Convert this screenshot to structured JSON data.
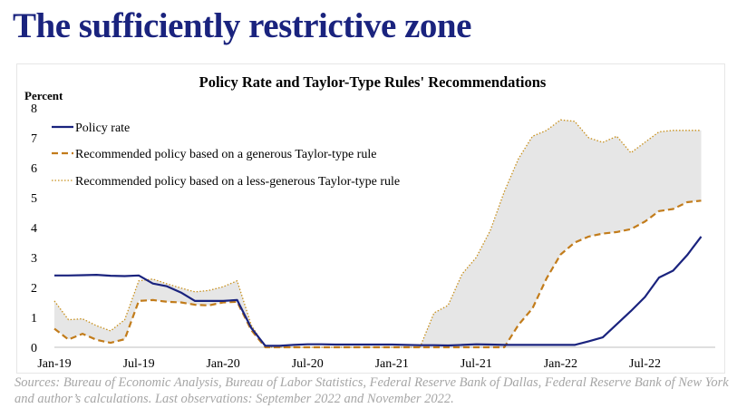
{
  "slide": {
    "title": "The sufficiently restrictive zone",
    "source": "Sources: Bureau of Economic Analysis, Bureau of Labor Statistics, Federal Reserve Bank of Dallas, Federal Reserve Bank of New York and author’s calculations. Last observations: September 2022 and November 2022."
  },
  "colors": {
    "title": "#1a237e",
    "policy_rate": "#1a237e",
    "generous_rule": "#c27c1b",
    "less_generous_rule": "#c8901c",
    "band_fill": "#e6e6e6",
    "source_text": "#a6a6a6"
  },
  "chart_data": {
    "type": "line",
    "title": "Policy Rate and Taylor-Type Rules' Recommendations",
    "ylabel": "Percent",
    "xlabel": "",
    "ylim": [
      0,
      8
    ],
    "yticks": [
      "0",
      "1",
      "2",
      "3",
      "4",
      "5",
      "6",
      "7",
      "8"
    ],
    "xticks": [
      "Jan-19",
      "Jul-19",
      "Jan-20",
      "Jul-20",
      "Jan-21",
      "Jul-21",
      "Jan-22",
      "Jul-22"
    ],
    "xrange": [
      "2019-01",
      "2022-12"
    ],
    "grid": false,
    "legend_position": "top-left",
    "shaded_band": "between less-generous and generous rule",
    "series": [
      {
        "name": "Policy rate",
        "style": "solid",
        "x": [
          "2019-01",
          "2019-02",
          "2019-03",
          "2019-04",
          "2019-05",
          "2019-06",
          "2019-07",
          "2019-08",
          "2019-09",
          "2019-10",
          "2019-11",
          "2019-12",
          "2020-01",
          "2020-02",
          "2020-03",
          "2020-04",
          "2020-05",
          "2020-06",
          "2020-07",
          "2020-08",
          "2020-09",
          "2020-10",
          "2020-11",
          "2020-12",
          "2021-01",
          "2021-02",
          "2021-03",
          "2021-04",
          "2021-05",
          "2021-06",
          "2021-07",
          "2021-08",
          "2021-09",
          "2021-10",
          "2021-11",
          "2021-12",
          "2022-01",
          "2022-02",
          "2022-03",
          "2022-04",
          "2022-05",
          "2022-06",
          "2022-07",
          "2022-08",
          "2022-09",
          "2022-10",
          "2022-11"
        ],
        "values": [
          2.4,
          2.4,
          2.41,
          2.42,
          2.39,
          2.38,
          2.4,
          2.13,
          2.04,
          1.83,
          1.55,
          1.55,
          1.55,
          1.58,
          0.65,
          0.05,
          0.05,
          0.08,
          0.1,
          0.1,
          0.09,
          0.09,
          0.09,
          0.09,
          0.09,
          0.08,
          0.07,
          0.07,
          0.06,
          0.08,
          0.1,
          0.09,
          0.08,
          0.08,
          0.08,
          0.08,
          0.08,
          0.08,
          0.2,
          0.33,
          0.77,
          1.21,
          1.68,
          2.33,
          2.56,
          3.08,
          3.7
        ]
      },
      {
        "name": "Recommended policy based on a generous Taylor-type rule",
        "style": "dashed",
        "x": [
          "2019-01",
          "2019-02",
          "2019-03",
          "2019-04",
          "2019-05",
          "2019-06",
          "2019-07",
          "2019-08",
          "2019-09",
          "2019-10",
          "2019-11",
          "2019-12",
          "2020-01",
          "2020-02",
          "2020-03",
          "2020-04",
          "2020-05",
          "2020-06",
          "2020-07",
          "2020-08",
          "2020-09",
          "2020-10",
          "2020-11",
          "2020-12",
          "2021-01",
          "2021-02",
          "2021-03",
          "2021-04",
          "2021-05",
          "2021-06",
          "2021-07",
          "2021-08",
          "2021-09",
          "2021-10",
          "2021-11",
          "2021-12",
          "2022-01",
          "2022-02",
          "2022-03",
          "2022-04",
          "2022-05",
          "2022-06",
          "2022-07",
          "2022-08",
          "2022-09",
          "2022-10",
          "2022-11"
        ],
        "values": [
          0.62,
          0.26,
          0.45,
          0.25,
          0.15,
          0.27,
          1.55,
          1.58,
          1.52,
          1.5,
          1.42,
          1.4,
          1.5,
          1.52,
          0.58,
          0.0,
          0.0,
          0.0,
          0.0,
          0.0,
          0.0,
          0.0,
          0.0,
          0.0,
          0.0,
          0.0,
          0.0,
          0.0,
          0.0,
          0.0,
          0.0,
          0.0,
          0.0,
          0.75,
          1.3,
          2.3,
          3.1,
          3.5,
          3.7,
          3.8,
          3.85,
          3.95,
          4.2,
          4.55,
          4.62,
          4.85,
          4.9
        ]
      },
      {
        "name": "Recommended policy based on a less-generous Taylor-type rule",
        "style": "dotted",
        "x": [
          "2019-01",
          "2019-02",
          "2019-03",
          "2019-04",
          "2019-05",
          "2019-06",
          "2019-07",
          "2019-08",
          "2019-09",
          "2019-10",
          "2019-11",
          "2019-12",
          "2020-01",
          "2020-02",
          "2020-03",
          "2020-04",
          "2020-05",
          "2020-06",
          "2020-07",
          "2020-08",
          "2020-09",
          "2020-10",
          "2020-11",
          "2020-12",
          "2021-01",
          "2021-02",
          "2021-03",
          "2021-04",
          "2021-05",
          "2021-06",
          "2021-07",
          "2021-08",
          "2021-09",
          "2021-10",
          "2021-11",
          "2021-12",
          "2022-01",
          "2022-02",
          "2022-03",
          "2022-04",
          "2022-05",
          "2022-06",
          "2022-07",
          "2022-08",
          "2022-09",
          "2022-10",
          "2022-11"
        ],
        "values": [
          1.55,
          0.92,
          0.95,
          0.72,
          0.55,
          0.92,
          2.22,
          2.28,
          2.12,
          1.98,
          1.85,
          1.9,
          2.02,
          2.22,
          0.75,
          0.0,
          0.0,
          0.0,
          0.0,
          0.0,
          0.0,
          0.0,
          0.0,
          0.0,
          0.0,
          0.0,
          0.0,
          1.15,
          1.4,
          2.45,
          3.0,
          3.9,
          5.2,
          6.3,
          7.05,
          7.25,
          7.6,
          7.55,
          7.0,
          6.85,
          7.05,
          6.5,
          6.85,
          7.2,
          7.25,
          7.25,
          7.25
        ]
      }
    ]
  }
}
